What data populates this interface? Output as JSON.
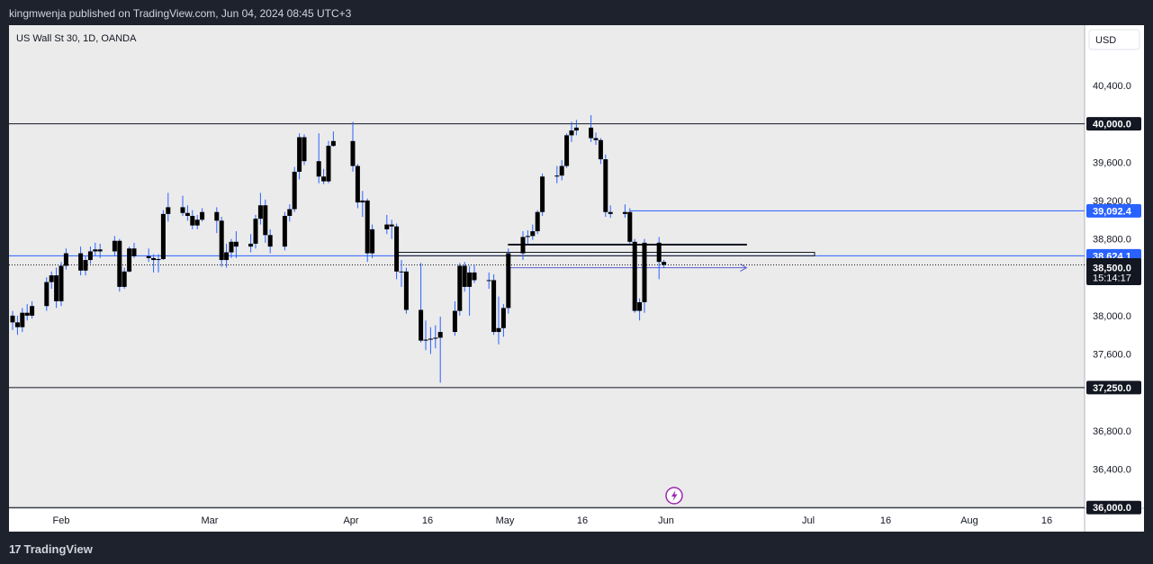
{
  "header": {
    "publisher": "kingmwenja published on TradingView.com, Jun 04, 2024 08:45 UTC+3"
  },
  "footer": {
    "brand": "TradingView"
  },
  "chart_data": {
    "type": "candlestick",
    "title": "US Wall St 30, 1D, OANDA",
    "currency_label": "USD",
    "y_ticks": [
      36400,
      36800,
      37600,
      38000,
      38800,
      39200,
      39600,
      40400
    ],
    "y_ticks_labels": [
      "36,400.0",
      "36,800.0",
      "37,600.0",
      "38,000.0",
      "38,800.0",
      "39,200.0",
      "39,600.0",
      "40,400.0"
    ],
    "x_ticks": [
      "Feb",
      "Mar",
      "Apr",
      "16",
      "May",
      "16",
      "Jun",
      "Jul",
      "16",
      "Aug",
      "16"
    ],
    "price_labels": [
      {
        "value": 40000,
        "text": "40,000.0",
        "style": "dark"
      },
      {
        "value": 39092.4,
        "text": "39,092.4",
        "style": "blue"
      },
      {
        "value": 38624.1,
        "text": "38,624.1",
        "style": "blue"
      },
      {
        "value": 38529,
        "text": "38,529.0",
        "style": "dark"
      },
      {
        "value": 38500,
        "text": "38,500.0",
        "style": "dark"
      },
      {
        "value": 37250,
        "text": "37,250.0",
        "style": "dark"
      },
      {
        "value": 36000,
        "text": "36,000.0",
        "style": "dark"
      }
    ],
    "countdown": "15:14:17",
    "horizontal_lines": [
      {
        "value": 40000,
        "color": "#131722"
      },
      {
        "value": 37250,
        "color": "#131722"
      },
      {
        "value": 36000,
        "color": "#131722"
      },
      {
        "value": 39092.4,
        "color": "#2962ff",
        "from_date": "2024-05-28"
      },
      {
        "value": 38624.1,
        "color": "#2962ff"
      }
    ],
    "candles": [
      [
        "2024-01-22",
        38000,
        38050,
        37850,
        37930
      ],
      [
        "2024-01-23",
        37930,
        38000,
        37800,
        37880
      ],
      [
        "2024-01-24",
        37880,
        38080,
        37830,
        38030
      ],
      [
        "2024-01-25",
        38030,
        38120,
        37950,
        38000
      ],
      [
        "2024-01-26",
        38000,
        38150,
        37970,
        38100
      ],
      [
        "2024-01-29",
        38100,
        38400,
        38050,
        38350
      ],
      [
        "2024-01-30",
        38350,
        38460,
        38280,
        38420
      ],
      [
        "2024-01-31",
        38420,
        38500,
        38080,
        38150
      ],
      [
        "2024-02-01",
        38150,
        38560,
        38100,
        38520
      ],
      [
        "2024-02-02",
        38520,
        38700,
        38480,
        38650
      ],
      [
        "2024-02-05",
        38650,
        38720,
        38420,
        38470
      ],
      [
        "2024-02-06",
        38470,
        38620,
        38420,
        38580
      ],
      [
        "2024-02-07",
        38580,
        38720,
        38540,
        38670
      ],
      [
        "2024-02-08",
        38670,
        38760,
        38620,
        38690
      ],
      [
        "2024-02-09",
        38690,
        38750,
        38600,
        38670
      ],
      [
        "2024-02-12",
        38670,
        38830,
        38620,
        38780
      ],
      [
        "2024-02-13",
        38780,
        38800,
        38250,
        38300
      ],
      [
        "2024-02-14",
        38300,
        38500,
        38280,
        38460
      ],
      [
        "2024-02-15",
        38460,
        38720,
        38450,
        38700
      ],
      [
        "2024-02-16",
        38700,
        38760,
        38600,
        38620
      ],
      [
        "2024-02-19",
        38620,
        38700,
        38560,
        38600
      ],
      [
        "2024-02-20",
        38600,
        38640,
        38450,
        38580
      ],
      [
        "2024-02-21",
        38580,
        38640,
        38450,
        38590
      ],
      [
        "2024-02-22",
        38590,
        39100,
        38580,
        39060
      ],
      [
        "2024-02-23",
        39060,
        39280,
        38980,
        39130
      ],
      [
        "2024-02-26",
        39130,
        39250,
        39040,
        39070
      ],
      [
        "2024-02-27",
        39070,
        39150,
        38990,
        39040
      ],
      [
        "2024-02-28",
        39040,
        39100,
        38900,
        38940
      ],
      [
        "2024-02-29",
        38940,
        39050,
        38900,
        39000
      ],
      [
        "2024-03-01",
        39000,
        39120,
        38980,
        39080
      ],
      [
        "2024-03-04",
        39080,
        39130,
        38860,
        38990
      ],
      [
        "2024-03-05",
        38990,
        39030,
        38510,
        38580
      ],
      [
        "2024-03-06",
        38580,
        38750,
        38500,
        38660
      ],
      [
        "2024-03-07",
        38660,
        38800,
        38600,
        38770
      ],
      [
        "2024-03-08",
        38770,
        38880,
        38600,
        38720
      ],
      [
        "2024-03-11",
        38720,
        38850,
        38660,
        38750
      ],
      [
        "2024-03-12",
        38750,
        39050,
        38700,
        39010
      ],
      [
        "2024-03-13",
        39010,
        39280,
        38950,
        39150
      ],
      [
        "2024-03-14",
        39150,
        39210,
        38760,
        38840
      ],
      [
        "2024-03-15",
        38840,
        38900,
        38650,
        38720
      ],
      [
        "2024-03-18",
        38720,
        39080,
        38680,
        39040
      ],
      [
        "2024-03-19",
        39040,
        39160,
        38980,
        39110
      ],
      [
        "2024-03-20",
        39110,
        39550,
        39080,
        39500
      ],
      [
        "2024-03-21",
        39500,
        39900,
        39420,
        39860
      ],
      [
        "2024-03-22",
        39860,
        39890,
        39570,
        39610
      ],
      [
        "2024-03-25",
        39610,
        39900,
        39380,
        39450
      ],
      [
        "2024-03-26",
        39450,
        39530,
        39370,
        39400
      ],
      [
        "2024-03-27",
        39400,
        39820,
        39380,
        39770
      ],
      [
        "2024-03-28",
        39770,
        39920,
        39760,
        39820
      ],
      [
        "2024-04-01",
        39820,
        40020,
        39500,
        39560
      ],
      [
        "2024-04-02",
        39560,
        39580,
        39120,
        39180
      ],
      [
        "2024-04-03",
        39180,
        39300,
        39030,
        39200
      ],
      [
        "2024-04-04",
        39200,
        39220,
        38560,
        38650
      ],
      [
        "2024-04-05",
        38650,
        38950,
        38600,
        38900
      ],
      [
        "2024-04-08",
        38900,
        39050,
        38850,
        38950
      ],
      [
        "2024-04-09",
        38950,
        39000,
        38800,
        38930
      ],
      [
        "2024-04-10",
        38930,
        38960,
        38380,
        38460
      ],
      [
        "2024-04-11",
        38460,
        38580,
        38300,
        38460
      ],
      [
        "2024-04-12",
        38460,
        38500,
        38020,
        38060
      ],
      [
        "2024-04-15",
        38060,
        38550,
        37720,
        37740
      ],
      [
        "2024-04-16",
        37740,
        37950,
        37640,
        37750
      ],
      [
        "2024-04-17",
        37750,
        37880,
        37600,
        37760
      ],
      [
        "2024-04-18",
        37760,
        37900,
        37660,
        37770
      ],
      [
        "2024-04-19",
        37770,
        37990,
        37300,
        37830
      ],
      [
        "2024-04-22",
        37830,
        38150,
        37790,
        38050
      ],
      [
        "2024-04-23",
        38050,
        38550,
        38000,
        38520
      ],
      [
        "2024-04-24",
        38520,
        38560,
        38250,
        38300
      ],
      [
        "2024-04-25",
        38300,
        38520,
        38000,
        38450
      ],
      [
        "2024-04-26",
        38450,
        38530,
        38340,
        38370
      ],
      [
        "2024-04-29",
        38370,
        38450,
        38280,
        38370
      ],
      [
        "2024-04-30",
        38370,
        38430,
        37800,
        37830
      ],
      [
        "2024-05-01",
        37830,
        38200,
        37700,
        37870
      ],
      [
        "2024-05-02",
        37870,
        38120,
        37780,
        38080
      ],
      [
        "2024-05-03",
        38080,
        38700,
        38020,
        38650
      ],
      [
        "2024-05-06",
        38650,
        38880,
        38580,
        38820
      ],
      [
        "2024-05-07",
        38820,
        38890,
        38750,
        38830
      ],
      [
        "2024-05-08",
        38830,
        38950,
        38790,
        38880
      ],
      [
        "2024-05-09",
        38880,
        39100,
        38850,
        39080
      ],
      [
        "2024-05-10",
        39080,
        39480,
        39040,
        39450
      ],
      [
        "2024-05-13",
        39450,
        39560,
        39380,
        39460
      ],
      [
        "2024-05-14",
        39460,
        39620,
        39410,
        39560
      ],
      [
        "2024-05-15",
        39560,
        39900,
        39540,
        39880
      ],
      [
        "2024-05-16",
        39880,
        40020,
        39810,
        39930
      ],
      [
        "2024-05-17",
        39930,
        40040,
        39880,
        39960
      ],
      [
        "2024-05-20",
        39960,
        40090,
        39810,
        39850
      ],
      [
        "2024-05-21",
        39850,
        39910,
        39780,
        39830
      ],
      [
        "2024-05-22",
        39830,
        39850,
        39580,
        39630
      ],
      [
        "2024-05-23",
        39630,
        39680,
        39030,
        39080
      ],
      [
        "2024-05-24",
        39080,
        39150,
        39020,
        39060
      ],
      [
        "2024-05-27",
        39060,
        39160,
        39020,
        39080
      ],
      [
        "2024-05-28",
        39080,
        39120,
        38750,
        38770
      ],
      [
        "2024-05-29",
        38770,
        38800,
        38030,
        38050
      ],
      [
        "2024-05-30",
        38050,
        38180,
        37950,
        38140
      ],
      [
        "2024-05-31",
        38140,
        38800,
        38030,
        38760
      ],
      [
        "2024-06-03",
        38760,
        38820,
        38380,
        38560
      ],
      [
        "2024-06-04",
        38560,
        38580,
        38500,
        38529
      ]
    ],
    "drawings": [
      {
        "type": "rectangle",
        "from": "2024-04-10",
        "to": "2024-07-05",
        "low": 38624.1,
        "high": 38660
      },
      {
        "type": "rectangle",
        "from": "2024-05-03",
        "to": "2024-06-21",
        "low": 38738,
        "high": 38745
      },
      {
        "type": "arrow",
        "from": "2024-05-03",
        "to": "2024-06-21",
        "value": 38500,
        "color": "#5b5bd6"
      },
      {
        "type": "dotted_line",
        "value": 38529
      }
    ]
  }
}
